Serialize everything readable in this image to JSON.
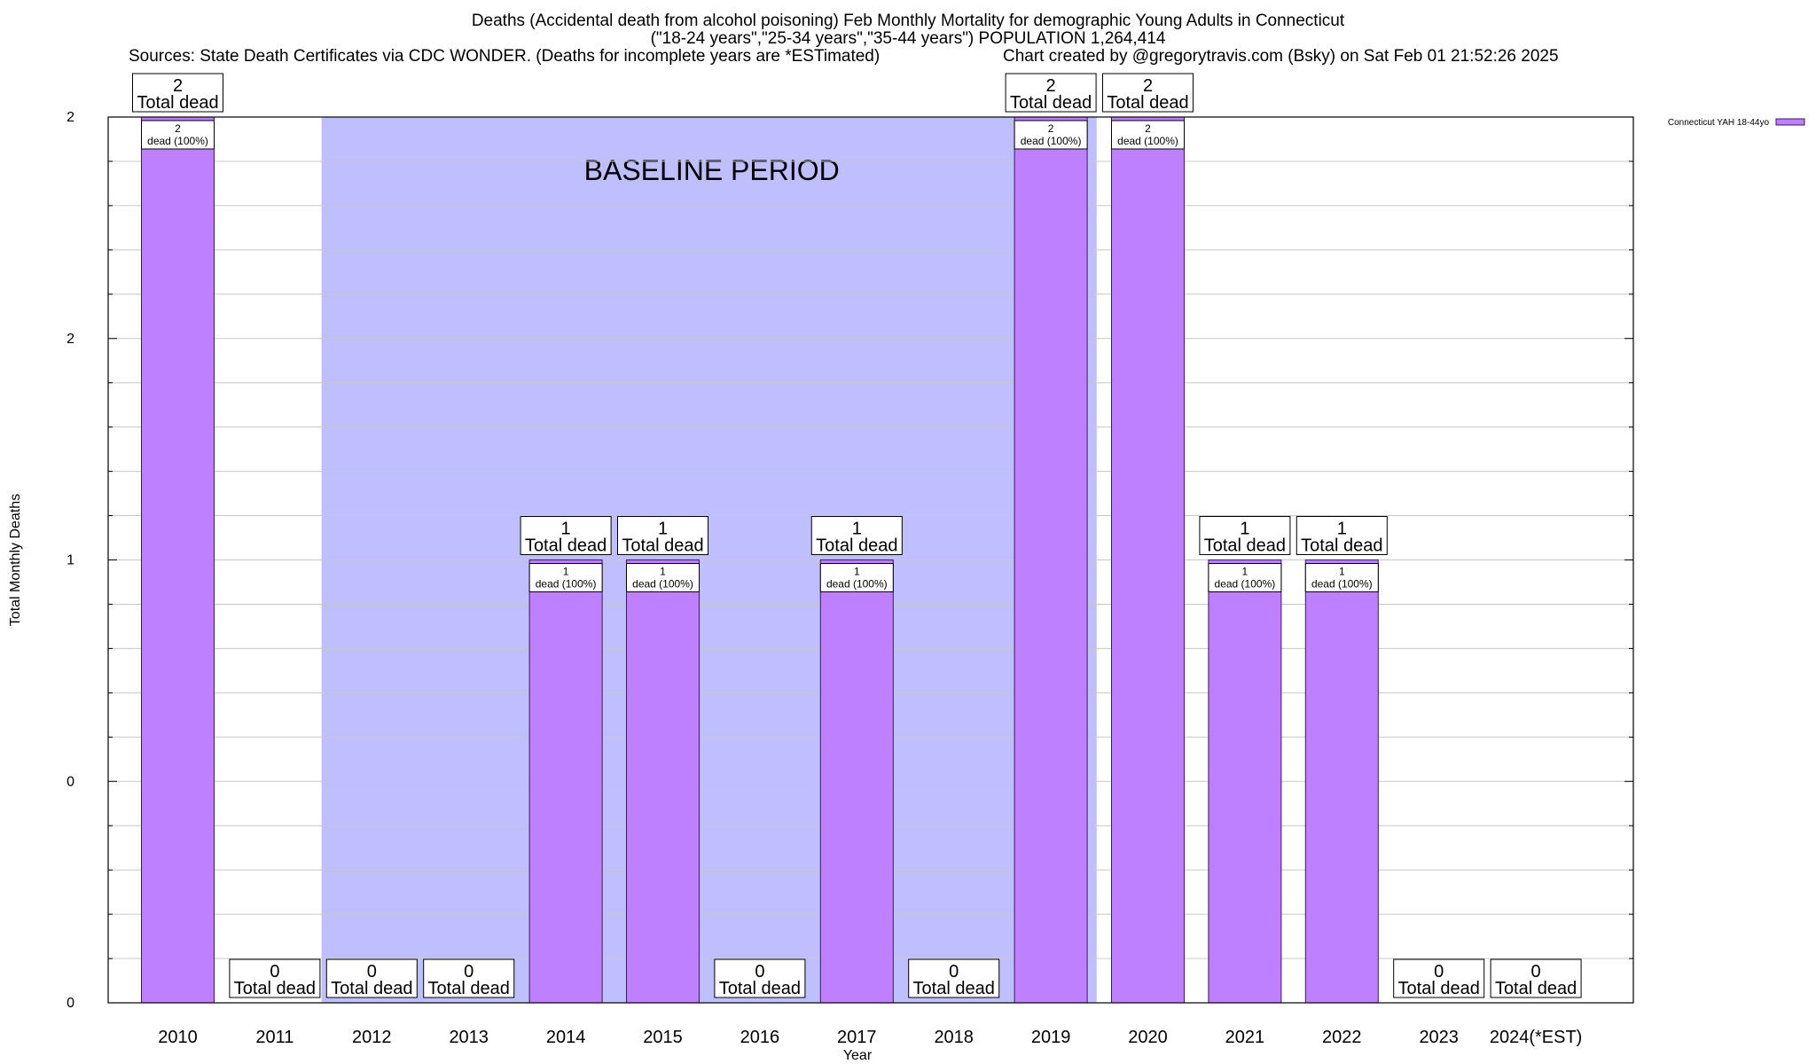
{
  "header": {
    "title_line1": "Deaths (Accidental death from alcohol poisoning) Feb Monthly Mortality for demographic Young Adults in Connecticut",
    "title_line2": "(\"18-24 years\",\"25-34 years\",\"35-44 years\") POPULATION 1,264,414",
    "sources": "Sources: State Death Certificates via CDC WONDER. (Deaths for incomplete years are *ESTimated)",
    "credit": "Chart created by @gregorytravis.com (Bsky) on Sat Feb 01 21:52:26 2025"
  },
  "chart_data": {
    "type": "bar",
    "xlabel": "Year",
    "ylabel": "Total Monthly Deaths",
    "ylim": [
      0,
      2
    ],
    "y_tick_labels": [
      "0",
      "0",
      "1",
      "2",
      "2"
    ],
    "grid": true,
    "legend_position": "top-right",
    "categories": [
      "2010",
      "2011",
      "2012",
      "2013",
      "2014",
      "2015",
      "2016",
      "2017",
      "2018",
      "2019",
      "2020",
      "2021",
      "2022",
      "2023",
      "2024(*EST)"
    ],
    "series": [
      {
        "name": "Connecticut YAH 18-44yo",
        "color": "#bf80ff",
        "values": [
          2,
          0,
          0,
          0,
          1,
          1,
          0,
          1,
          0,
          2,
          2,
          1,
          1,
          0,
          0
        ]
      }
    ],
    "total_label_suffix": "Total dead",
    "bar_label_suffix": "dead (100%)",
    "baseline_period": {
      "label": "BASELINE PERIOD",
      "from": "2012",
      "to": "2019",
      "color": "#bfbfff"
    }
  }
}
